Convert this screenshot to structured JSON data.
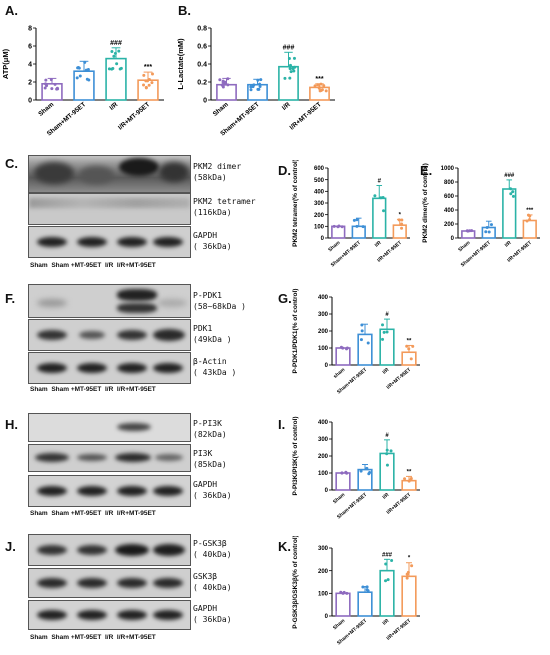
{
  "panels": {
    "A": "A.",
    "B": "B.",
    "C": "C.",
    "D": "D.",
    "E": "E.",
    "F": "F.",
    "G": "G.",
    "H": "H.",
    "I": "I.",
    "J": "J.",
    "K": "K."
  },
  "blots": {
    "C": {
      "bands": [
        {
          "name": "PKM2 dimer",
          "size": "(58kDa)"
        },
        {
          "name": "PKM2 tetramer",
          "size": "(116kDa)"
        },
        {
          "name": "GAPDH",
          "size": "( 36kDa)"
        }
      ],
      "lanes": [
        "Sham",
        "Sham +MT-95ET",
        "I/R",
        "I/R+MT-95ET"
      ]
    },
    "F": {
      "bands": [
        {
          "name": "P-PDK1",
          "size": "(58~68kDa )"
        },
        {
          "name": "PDK1",
          "size": "(49kDa )"
        },
        {
          "name": "β-Actin",
          "size": "( 43kDa )"
        }
      ],
      "lanes": [
        "Sham",
        "Sham +MT-95ET",
        "I/R",
        "I/R+MT-95ET"
      ]
    },
    "H": {
      "bands": [
        {
          "name": "P-PI3K",
          "size": "(82kDa)"
        },
        {
          "name": "PI3K",
          "size": "(85kDa)"
        },
        {
          "name": "GAPDH",
          "size": "( 36kDa)"
        }
      ],
      "lanes": [
        "Sham",
        "Sham +MT-95ET",
        "I/R",
        "I/R+MT-95ET"
      ]
    },
    "J": {
      "bands": [
        {
          "name": "P-GSK3β",
          "size": "( 40kDa)"
        },
        {
          "name": "GSK3β",
          "size": "( 40kDa)"
        },
        {
          "name": "GAPDH",
          "size": "( 36kDa)"
        }
      ],
      "lanes": [
        "Sham",
        "Sham +MT-95ET",
        "I/R",
        "I/R+MT-95ET"
      ]
    }
  },
  "colors": {
    "sham": "#8e6bbf",
    "sham_mt": "#3d8fd6",
    "ir": "#2bb3a7",
    "ir_mt": "#f39a5a"
  },
  "chart_data": [
    {
      "id": "A",
      "type": "bar",
      "ylabel": "ATP(μM)",
      "ylim": [
        0,
        8
      ],
      "yticks": [
        0,
        2,
        4,
        6,
        8
      ],
      "categories": [
        "Sham",
        "Sham+MT-95ET",
        "I/R",
        "I/R+MT-95ET"
      ],
      "values": [
        1.8,
        3.2,
        4.6,
        2.2
      ],
      "errors": [
        0.6,
        1.1,
        1.2,
        0.9
      ],
      "annotations": [
        "",
        "",
        "###",
        "***"
      ]
    },
    {
      "id": "B",
      "type": "bar",
      "ylabel": "L-Lactate(mM)",
      "ylim": [
        0,
        0.8
      ],
      "yticks": [
        0.0,
        0.2,
        0.4,
        0.6,
        0.8
      ],
      "categories": [
        "Sham",
        "Sham+MT-95ET",
        "I/R",
        "I/R+MT-95ET"
      ],
      "values": [
        0.17,
        0.17,
        0.37,
        0.14
      ],
      "errors": [
        0.07,
        0.06,
        0.16,
        0.04
      ],
      "annotations": [
        "",
        "",
        "###",
        "***"
      ]
    },
    {
      "id": "D",
      "type": "bar",
      "ylabel": "PKM2 tetramer(% of control)",
      "ylim": [
        0,
        600
      ],
      "yticks": [
        0,
        100,
        200,
        300,
        400,
        500,
        600
      ],
      "categories": [
        "Sham",
        "Sham+MT-95ET",
        "I/R",
        "I/R+MT-95ET"
      ],
      "values": [
        100,
        100,
        340,
        110
      ],
      "errors": [
        0,
        70,
        110,
        50
      ],
      "annotations": [
        "",
        "",
        "#",
        "*"
      ]
    },
    {
      "id": "E",
      "type": "bar",
      "ylabel": "PKM2 dimer(% of control)",
      "ylim": [
        0,
        1000
      ],
      "yticks": [
        0,
        200,
        400,
        600,
        800,
        1000
      ],
      "categories": [
        "Sham",
        "Sham+MT-95ET",
        "I/R",
        "I/R+MT-95ET"
      ],
      "values": [
        100,
        150,
        700,
        250
      ],
      "errors": [
        0,
        90,
        130,
        80
      ],
      "annotations": [
        "",
        "",
        "###",
        "***"
      ]
    },
    {
      "id": "G",
      "type": "bar",
      "ylabel": "P-PDK1/PDK1(% of control)",
      "ylim": [
        0,
        400
      ],
      "yticks": [
        0,
        100,
        200,
        300,
        400
      ],
      "categories": [
        "sham",
        "Sham+MT-95ET",
        "I/R",
        "I/R+MT-95ET"
      ],
      "values": [
        100,
        180,
        210,
        75
      ],
      "errors": [
        0,
        60,
        60,
        40
      ],
      "annotations": [
        "",
        "",
        "#",
        "**"
      ]
    },
    {
      "id": "I",
      "type": "bar",
      "ylabel": "P-PI3K/PI3K(% of control)",
      "ylim": [
        0,
        400
      ],
      "yticks": [
        0,
        100,
        200,
        300,
        400
      ],
      "categories": [
        "Sham",
        "Sham+MT-95ET",
        "I/R",
        "I/R+MT-95ET"
      ],
      "values": [
        100,
        120,
        215,
        55
      ],
      "errors": [
        0,
        30,
        80,
        25
      ],
      "annotations": [
        "",
        "",
        "#",
        "**"
      ]
    },
    {
      "id": "K",
      "type": "bar",
      "ylabel": "P-GSK3β/GSK3β(% of control)",
      "ylim": [
        0,
        300
      ],
      "yticks": [
        0,
        100,
        200,
        300
      ],
      "categories": [
        "Sham",
        "Sham+MT-95ET",
        "I/R",
        "I/R+MT-95ET"
      ],
      "values": [
        100,
        105,
        200,
        175
      ],
      "errors": [
        0,
        25,
        50,
        60
      ],
      "annotations": [
        "",
        "",
        "###",
        "*"
      ]
    }
  ]
}
